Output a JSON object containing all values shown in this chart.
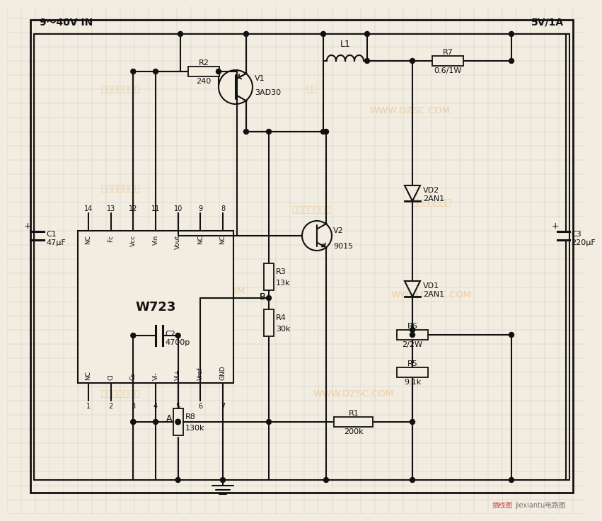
{
  "bg_color": "#f2ede0",
  "grid_color": "#c8c8c8",
  "lc": "#111111",
  "lw": 1.5,
  "wm": "#e8bb80",
  "input_label": "9～40V IN",
  "output_label": "5V/1A",
  "ic_name": "W723",
  "pin_top_nums": [
    "14",
    "13",
    "12",
    "11",
    "10",
    "9",
    "8"
  ],
  "pin_top_lbl": [
    "NC",
    "Fc",
    "Vcc",
    "Vin",
    "Vout",
    "NC",
    "NC"
  ],
  "pin_bot_nums": [
    "1",
    "2",
    "3",
    "4",
    "5",
    "6",
    "7"
  ],
  "pin_bot_lbl": [
    "NC",
    "CI",
    "Cs",
    "Vi-",
    "Vi+",
    "Vref",
    "GND"
  ],
  "R2": "240",
  "R7": "0.6/1W",
  "R3": "13k",
  "R4": "30k",
  "R1": "200k",
  "R5": "9.1k",
  "R6": "2/2W",
  "R8": "130k",
  "C1": "47μF",
  "C2": "4700p",
  "C3": "220μF",
  "V1": "3AD30",
  "V2": "9015",
  "VD1": "2AN1",
  "VD2": "2AN1",
  "L1": "L1",
  "footer": "jiexiantu电路图"
}
